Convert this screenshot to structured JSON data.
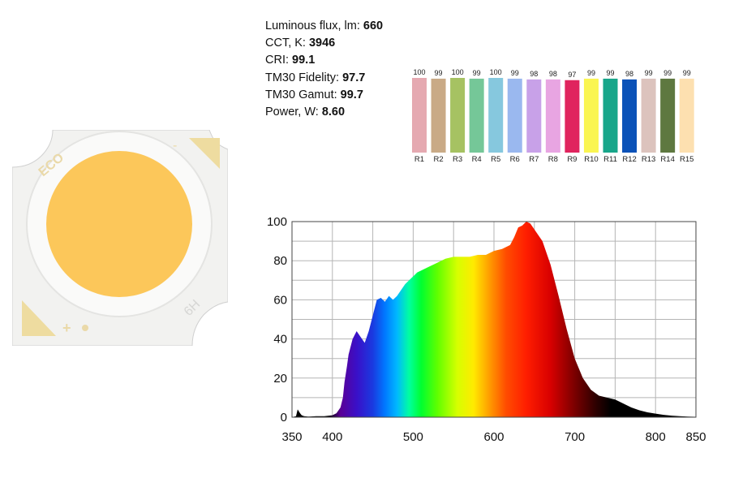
{
  "specs": [
    {
      "label": "Luminous flux, lm: ",
      "value": "660"
    },
    {
      "label": "CCT, K: ",
      "value": "3946"
    },
    {
      "label": "CRI: ",
      "value": "99.1"
    },
    {
      "label": "TM30 Fidelity: ",
      "value": "97.7"
    },
    {
      "label": "TM30 Gamut: ",
      "value": "99.7"
    },
    {
      "label": "Power, W: ",
      "value": " 8.60"
    }
  ],
  "chip": {
    "brand_text": "ECO",
    "model_text": "6H",
    "plus_text": "+",
    "minus_text": "-",
    "phosphor_color": "#fcc75a",
    "substrate_color": "#f2f2f0",
    "pad_color": "#eedca0"
  },
  "chart_data": [
    {
      "type": "bar",
      "categories": [
        "R1",
        "R2",
        "R3",
        "R4",
        "R5",
        "R6",
        "R7",
        "R8",
        "R9",
        "R10",
        "R11",
        "R12",
        "R13",
        "R14",
        "R15"
      ],
      "values": [
        100,
        99,
        100,
        99,
        100,
        99,
        98,
        98,
        97,
        99,
        99,
        98,
        99,
        99,
        99
      ],
      "colors": [
        "#e5a9b1",
        "#c9aa86",
        "#a6c262",
        "#75c798",
        "#86c8de",
        "#9ab8ef",
        "#c8a1e8",
        "#e8a5e2",
        "#e0245e",
        "#faf552",
        "#18a68a",
        "#0b52b8",
        "#dcc3bd",
        "#5e7840",
        "#fde0b0"
      ]
    },
    {
      "type": "area",
      "x_ticks": [
        350,
        400,
        500,
        600,
        700,
        800,
        850
      ],
      "y_ticks": [
        0,
        20,
        40,
        60,
        80,
        100
      ],
      "xlim": [
        350,
        850
      ],
      "ylim": [
        0,
        100
      ],
      "grid": true,
      "x": [
        350,
        355,
        357,
        360,
        362,
        365,
        370,
        380,
        390,
        400,
        405,
        410,
        413,
        415,
        418,
        420,
        425,
        430,
        435,
        440,
        445,
        450,
        455,
        460,
        465,
        470,
        475,
        480,
        485,
        490,
        495,
        500,
        505,
        510,
        520,
        530,
        540,
        550,
        560,
        570,
        580,
        590,
        600,
        610,
        620,
        625,
        630,
        635,
        640,
        645,
        650,
        660,
        670,
        680,
        690,
        700,
        710,
        720,
        730,
        740,
        750,
        760,
        770,
        780,
        790,
        800,
        810,
        820,
        830,
        840,
        850
      ],
      "y": [
        0,
        0.5,
        4,
        2,
        1,
        0.5,
        0.3,
        0.5,
        0.5,
        1,
        2,
        5,
        10,
        18,
        26,
        32,
        40,
        44,
        41,
        38,
        44,
        52,
        60,
        61,
        59,
        62,
        60,
        62,
        65,
        68,
        70,
        72,
        74,
        75,
        77,
        79,
        81,
        82,
        82,
        82,
        83,
        83,
        85,
        86,
        88,
        92,
        97,
        98,
        100,
        99,
        96,
        90,
        78,
        62,
        45,
        30,
        20,
        14,
        11,
        10,
        9,
        7,
        5,
        3.5,
        2.5,
        1.8,
        1.2,
        0.8,
        0.5,
        0.3,
        0.2
      ]
    }
  ]
}
